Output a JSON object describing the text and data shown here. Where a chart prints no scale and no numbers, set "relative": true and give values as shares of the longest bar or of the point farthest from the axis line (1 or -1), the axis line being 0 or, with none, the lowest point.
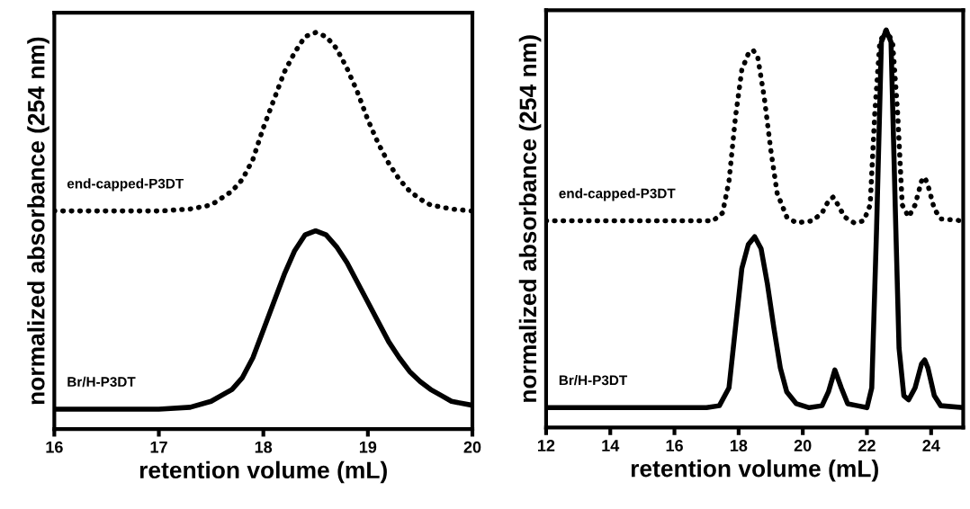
{
  "chart_data": [
    {
      "type": "line",
      "relative": true,
      "xlabel": "retention volume (mL)",
      "ylabel": "normalized absorbance (254 nm)",
      "xlim": [
        16,
        20
      ],
      "xticks": [
        16,
        17,
        18,
        19,
        20
      ],
      "grid": false,
      "legend": false,
      "series": [
        {
          "name": "end-capped-P3DT",
          "color": "#000000",
          "line_style": "dotted",
          "x": [
            16,
            17,
            17.3,
            17.5,
            17.7,
            17.8,
            17.9,
            18.0,
            18.1,
            18.2,
            18.3,
            18.4,
            18.5,
            18.6,
            18.7,
            18.8,
            18.9,
            19.0,
            19.1,
            19.2,
            19.3,
            19.4,
            19.5,
            19.6,
            19.8,
            20
          ],
          "values": [
            0.55,
            0.55,
            0.555,
            0.565,
            0.6,
            0.63,
            0.68,
            0.76,
            0.83,
            0.9,
            0.95,
            0.99,
            1.0,
            0.99,
            0.96,
            0.91,
            0.85,
            0.78,
            0.72,
            0.67,
            0.63,
            0.6,
            0.58,
            0.565,
            0.555,
            0.55
          ]
        },
        {
          "name": "Br/H-P3DT",
          "color": "#000000",
          "line_style": "solid",
          "x": [
            16,
            17,
            17.3,
            17.5,
            17.7,
            17.8,
            17.9,
            18.0,
            18.1,
            18.2,
            18.3,
            18.4,
            18.5,
            18.6,
            18.7,
            18.8,
            18.9,
            19.0,
            19.1,
            19.2,
            19.3,
            19.4,
            19.5,
            19.6,
            19.7,
            19.8,
            19.9,
            20
          ],
          "values": [
            0.05,
            0.05,
            0.055,
            0.07,
            0.1,
            0.13,
            0.18,
            0.25,
            0.32,
            0.39,
            0.45,
            0.49,
            0.5,
            0.49,
            0.46,
            0.42,
            0.37,
            0.32,
            0.27,
            0.22,
            0.18,
            0.145,
            0.12,
            0.1,
            0.085,
            0.07,
            0.065,
            0.06
          ]
        }
      ]
    },
    {
      "type": "line",
      "relative": true,
      "xlabel": "retention volume (mL)",
      "ylabel": "normalized absorbance (254 nm)",
      "xlim": [
        12,
        25
      ],
      "xticks": [
        12,
        14,
        16,
        18,
        20,
        22,
        24
      ],
      "grid": false,
      "legend": false,
      "series": [
        {
          "name": "end-capped-P3DT",
          "color": "#000000",
          "line_style": "dotted",
          "x": [
            12,
            17.2,
            17.5,
            17.7,
            17.9,
            18.1,
            18.3,
            18.45,
            18.6,
            18.8,
            19.0,
            19.2,
            19.5,
            19.8,
            20.3,
            20.6,
            20.8,
            20.95,
            21.1,
            21.3,
            21.6,
            21.9,
            22.1,
            22.25,
            22.4,
            22.6,
            22.8,
            22.95,
            23.1,
            23.3,
            23.5,
            23.7,
            23.8,
            23.9,
            24.1,
            24.3,
            25
          ],
          "values": [
            0.52,
            0.52,
            0.54,
            0.62,
            0.78,
            0.9,
            0.94,
            0.95,
            0.93,
            0.83,
            0.7,
            0.59,
            0.53,
            0.515,
            0.52,
            0.54,
            0.57,
            0.58,
            0.56,
            0.53,
            0.515,
            0.52,
            0.56,
            0.8,
            0.97,
            1.0,
            0.97,
            0.8,
            0.56,
            0.53,
            0.56,
            0.62,
            0.63,
            0.61,
            0.55,
            0.525,
            0.52
          ]
        },
        {
          "name": "Br/H-P3DT",
          "color": "#000000",
          "line_style": "solid",
          "x": [
            12,
            17,
            17.4,
            17.7,
            17.9,
            18.1,
            18.3,
            18.5,
            18.7,
            18.9,
            19.1,
            19.3,
            19.5,
            19.8,
            20.2,
            20.6,
            20.8,
            21.0,
            21.2,
            21.4,
            21.7,
            22.0,
            22.15,
            22.3,
            22.45,
            22.6,
            22.75,
            22.9,
            23.0,
            23.15,
            23.3,
            23.5,
            23.7,
            23.8,
            23.9,
            24.1,
            24.3,
            25
          ],
          "values": [
            0.05,
            0.05,
            0.055,
            0.1,
            0.25,
            0.4,
            0.46,
            0.48,
            0.45,
            0.36,
            0.25,
            0.15,
            0.09,
            0.06,
            0.05,
            0.055,
            0.09,
            0.145,
            0.1,
            0.06,
            0.055,
            0.05,
            0.1,
            0.5,
            0.97,
            1.0,
            0.97,
            0.5,
            0.2,
            0.08,
            0.07,
            0.1,
            0.16,
            0.17,
            0.15,
            0.08,
            0.055,
            0.05
          ]
        }
      ]
    }
  ]
}
